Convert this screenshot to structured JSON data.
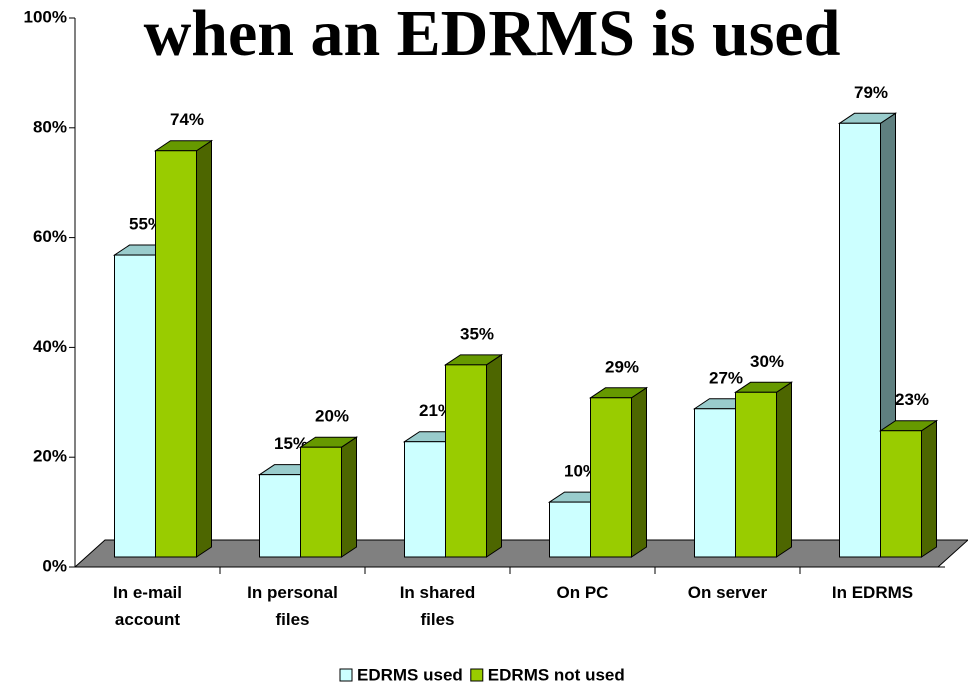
{
  "chart_data": {
    "type": "bar3d",
    "title": "when an EDRMS is used",
    "categories": [
      "In e-mail account",
      "In personal files",
      "In shared files",
      "On PC",
      "On server",
      "In EDRMS"
    ],
    "series": [
      {
        "name": "EDRMS used",
        "color": "#ccffff",
        "values": [
          55,
          15,
          21,
          10,
          27,
          79
        ],
        "value_labels": [
          "55%",
          "15%",
          "21%",
          "10%",
          "27%",
          "79%"
        ]
      },
      {
        "name": "EDRMS not used",
        "color": "#99cc00",
        "values": [
          74,
          20,
          35,
          29,
          30,
          23
        ],
        "value_labels": [
          "74%",
          "20%",
          "35%",
          "29%",
          "30%",
          "23%"
        ]
      }
    ],
    "ylim": [
      0,
      100
    ],
    "yticks": [
      {
        "value": 0,
        "label": "0%"
      },
      {
        "value": 20,
        "label": "20%"
      },
      {
        "value": 40,
        "label": "40%"
      },
      {
        "value": 60,
        "label": "60%"
      },
      {
        "value": 80,
        "label": "80%"
      },
      {
        "value": 100,
        "label": "100%"
      }
    ],
    "legend": "bottom"
  }
}
